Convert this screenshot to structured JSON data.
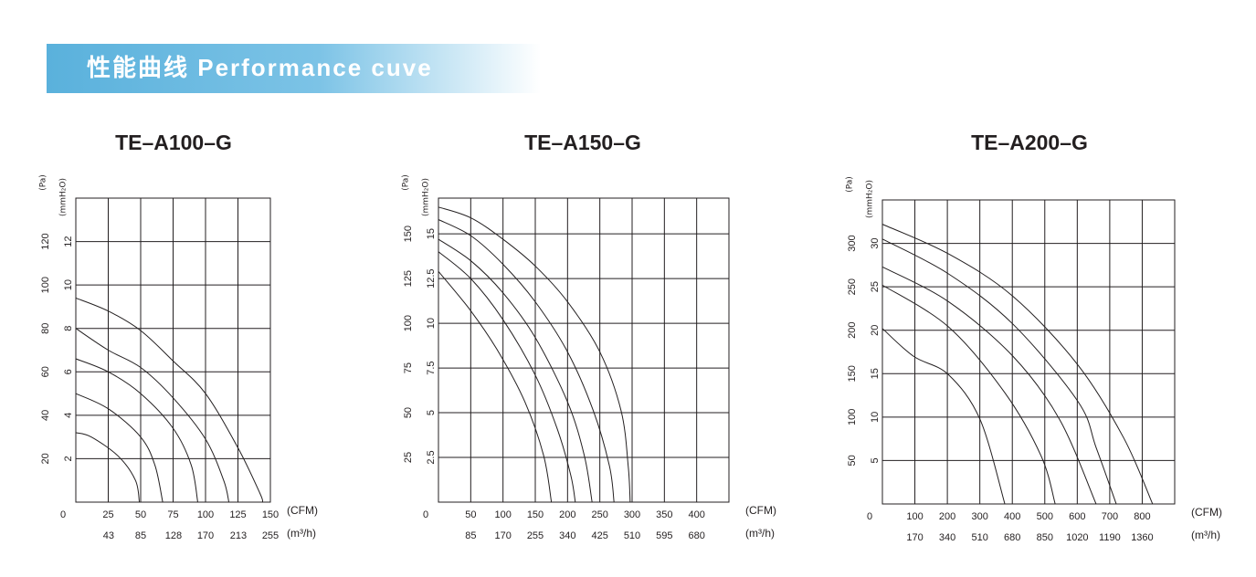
{
  "header": {
    "title": "性能曲线  Performance cuve"
  },
  "chart_data": [
    {
      "type": "line",
      "title": "TE–A100–G",
      "x_label": "(CFM)",
      "x2_label": "(m³/h)",
      "y_label": "(Pa)",
      "y2_label": "(mmH₂O)",
      "xlim": [
        0,
        150
      ],
      "xticks": [
        0,
        25,
        50,
        75,
        100,
        125,
        150
      ],
      "x2lim": [
        0,
        255
      ],
      "x2ticks": [
        43,
        85,
        128,
        170,
        213,
        255
      ],
      "ylim": [
        0,
        140
      ],
      "yticks": [
        20,
        40,
        60,
        80,
        100,
        120
      ],
      "y2lim": [
        0,
        14
      ],
      "y2ticks": [
        2,
        4,
        6,
        8,
        10,
        12
      ],
      "grid": true,
      "series": [
        {
          "color": "#231f20",
          "x": [
            0,
            25,
            50,
            75,
            100,
            125,
            142,
            144
          ],
          "values": [
            94,
            88,
            79,
            65,
            50,
            25,
            4,
            0
          ]
        },
        {
          "color": "#231f20",
          "x": [
            0,
            25,
            50,
            75,
            100,
            114,
            118
          ],
          "values": [
            80,
            70,
            62,
            48,
            29,
            10,
            0
          ]
        },
        {
          "color": "#231f20",
          "x": [
            0,
            25,
            50,
            75,
            89,
            94
          ],
          "values": [
            66,
            60,
            50,
            34,
            17,
            0
          ]
        },
        {
          "color": "#231f20",
          "x": [
            0,
            25,
            50,
            61,
            67
          ],
          "values": [
            50,
            43,
            30,
            17,
            0
          ]
        },
        {
          "color": "#231f20",
          "x": [
            0,
            12,
            33,
            46,
            49
          ],
          "values": [
            32,
            30,
            21,
            10,
            0
          ]
        }
      ]
    },
    {
      "type": "line",
      "title": "TE–A150–G",
      "x_label": "(CFM)",
      "x2_label": "(m³/h)",
      "y_label": "(Pa)",
      "y2_label": "(mmH₂O)",
      "xlim": [
        0,
        450
      ],
      "xticks": [
        0,
        50,
        100,
        150,
        200,
        250,
        300,
        350,
        400
      ],
      "x2lim": [
        0,
        765
      ],
      "x2ticks": [
        85,
        170,
        255,
        340,
        425,
        510,
        595,
        680
      ],
      "ylim": [
        0,
        170
      ],
      "yticks": [
        25,
        50,
        75,
        100,
        125,
        150
      ],
      "y2lim": [
        0,
        17
      ],
      "y2ticks": [
        2.5,
        5,
        7.5,
        10,
        12.5,
        15
      ],
      "grid": true,
      "series": [
        {
          "color": "#231f20",
          "x": [
            0,
            50,
            100,
            150,
            200,
            250,
            283,
            294,
            297
          ],
          "values": [
            165,
            159,
            147,
            132,
            112,
            84,
            51,
            20,
            0
          ]
        },
        {
          "color": "#231f20",
          "x": [
            0,
            50,
            100,
            150,
            200,
            240,
            265,
            272
          ],
          "values": [
            158,
            149,
            133,
            112,
            84,
            51,
            20,
            0
          ]
        },
        {
          "color": "#231f20",
          "x": [
            0,
            50,
            100,
            150,
            200,
            226,
            238
          ],
          "values": [
            147,
            135,
            117,
            92,
            56,
            26,
            0
          ]
        },
        {
          "color": "#231f20",
          "x": [
            0,
            50,
            100,
            150,
            184,
            205,
            212
          ],
          "values": [
            140,
            125,
            102,
            71,
            41,
            15,
            0
          ]
        },
        {
          "color": "#231f20",
          "x": [
            0,
            50,
            93,
            134,
            163,
            175
          ],
          "values": [
            129,
            107,
            84,
            56,
            26,
            0
          ]
        }
      ]
    },
    {
      "type": "line",
      "title": "TE–A200–G",
      "x_label": "(CFM)",
      "x2_label": "(m³/h)",
      "y_label": "(Pa)",
      "y2_label": "(mmH₂O)",
      "xlim": [
        0,
        900
      ],
      "xticks": [
        0,
        100,
        200,
        300,
        400,
        500,
        600,
        700,
        800
      ],
      "x2lim": [
        0,
        1530
      ],
      "x2ticks": [
        170,
        340,
        510,
        680,
        850,
        1020,
        1190,
        1360
      ],
      "ylim": [
        0,
        350
      ],
      "yticks": [
        50,
        100,
        150,
        200,
        250,
        300
      ],
      "y2lim": [
        0,
        35
      ],
      "y2ticks": [
        5,
        10,
        15,
        20,
        25,
        30
      ],
      "grid": true,
      "series": [
        {
          "color": "#231f20",
          "x": [
            0,
            203,
            402,
            602,
            743,
            832
          ],
          "values": [
            322,
            288,
            239,
            160,
            76,
            0
          ]
        },
        {
          "color": "#231f20",
          "x": [
            0,
            203,
            402,
            602,
            658,
            720
          ],
          "values": [
            305,
            265,
            207,
            118,
            65,
            0
          ]
        },
        {
          "color": "#231f20",
          "x": [
            0,
            203,
            402,
            546,
            658
          ],
          "values": [
            273,
            233,
            170,
            97,
            0
          ]
        },
        {
          "color": "#231f20",
          "x": [
            0,
            203,
            377,
            489,
            532
          ],
          "values": [
            252,
            204,
            128,
            55,
            0
          ]
        },
        {
          "color": "#231f20",
          "x": [
            0,
            96,
            203,
            301,
            377
          ],
          "values": [
            202,
            170,
            149,
            97,
            0
          ]
        }
      ]
    }
  ]
}
